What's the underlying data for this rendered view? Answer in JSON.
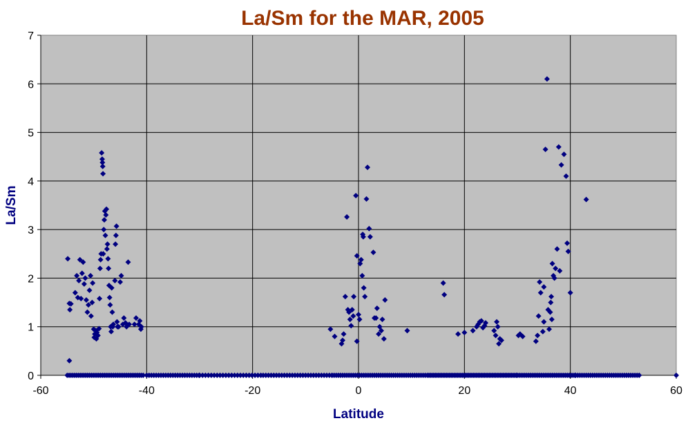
{
  "chart_data": {
    "type": "scatter",
    "title": "La/Sm for the MAR, 2005",
    "xlabel": "Latitude",
    "ylabel": "La/Sm",
    "xlim": [
      -60,
      60
    ],
    "ylim": [
      0,
      7
    ],
    "x_ticks": [
      "-60",
      "-40",
      "-20",
      "0",
      "20",
      "40",
      "60"
    ],
    "y_ticks": [
      "0",
      "1",
      "2",
      "3",
      "4",
      "5",
      "6",
      "7"
    ],
    "grid": true,
    "legend": "none",
    "colors": {
      "title": "#993300",
      "axis_label": "#000080",
      "marker": "#000080",
      "plot_bg": "#c0c0c0"
    },
    "points": [
      [
        -54.9,
        2.4
      ],
      [
        -54.6,
        1.48
      ],
      [
        -54.5,
        1.35
      ],
      [
        -54.3,
        1.47
      ],
      [
        -54.6,
        0.3
      ],
      [
        -53.5,
        1.7
      ],
      [
        -53.2,
        2.05
      ],
      [
        -53.0,
        1.6
      ],
      [
        -52.8,
        1.95
      ],
      [
        -52.6,
        2.38
      ],
      [
        -52.4,
        1.58
      ],
      [
        -52.2,
        2.1
      ],
      [
        -52.0,
        2.33
      ],
      [
        -51.8,
        1.88
      ],
      [
        -51.6,
        2.0
      ],
      [
        -51.4,
        1.55
      ],
      [
        -51.2,
        1.3
      ],
      [
        -51.0,
        1.45
      ],
      [
        -50.8,
        1.75
      ],
      [
        -50.6,
        2.05
      ],
      [
        -50.5,
        1.22
      ],
      [
        -50.3,
        1.5
      ],
      [
        -50.2,
        1.9
      ],
      [
        -50.0,
        0.95
      ],
      [
        -49.9,
        0.78
      ],
      [
        -49.8,
        0.85
      ],
      [
        -49.6,
        0.92
      ],
      [
        -49.5,
        0.75
      ],
      [
        -49.4,
        0.88
      ],
      [
        -49.2,
        0.82
      ],
      [
        -49.0,
        0.96
      ],
      [
        -48.9,
        1.58
      ],
      [
        -48.8,
        2.2
      ],
      [
        -48.7,
        2.38
      ],
      [
        -48.6,
        2.5
      ],
      [
        -48.5,
        4.58
      ],
      [
        -48.4,
        4.45
      ],
      [
        -48.35,
        4.38
      ],
      [
        -48.3,
        4.3
      ],
      [
        -48.25,
        4.15
      ],
      [
        -48.2,
        2.5
      ],
      [
        -48.1,
        3.0
      ],
      [
        -48.0,
        3.2
      ],
      [
        -47.9,
        3.38
      ],
      [
        -47.8,
        2.88
      ],
      [
        -47.7,
        3.3
      ],
      [
        -47.6,
        3.42
      ],
      [
        -47.5,
        2.6
      ],
      [
        -47.4,
        2.7
      ],
      [
        -47.3,
        2.4
      ],
      [
        -47.2,
        2.2
      ],
      [
        -47.1,
        1.85
      ],
      [
        -47.0,
        1.6
      ],
      [
        -46.9,
        1.45
      ],
      [
        -46.8,
        1.0
      ],
      [
        -46.7,
        0.9
      ],
      [
        -46.6,
        1.8
      ],
      [
        -46.5,
        1.3
      ],
      [
        -46.4,
        1.0
      ],
      [
        -46.3,
        1.05
      ],
      [
        -46.0,
        1.95
      ],
      [
        -45.9,
        2.7
      ],
      [
        -45.8,
        2.88
      ],
      [
        -45.7,
        3.07
      ],
      [
        -45.6,
        1.1
      ],
      [
        -45.5,
        1.0
      ],
      [
        -45.3,
        1.0
      ],
      [
        -45.0,
        1.92
      ],
      [
        -44.8,
        2.05
      ],
      [
        -44.5,
        1.05
      ],
      [
        -44.3,
        1.18
      ],
      [
        -44.0,
        1.08
      ],
      [
        -43.8,
        1.0
      ],
      [
        -43.5,
        2.33
      ],
      [
        -43.3,
        1.05
      ],
      [
        -42.3,
        1.05
      ],
      [
        -42.0,
        1.18
      ],
      [
        -41.5,
        1.05
      ],
      [
        -41.3,
        1.12
      ],
      [
        -41.1,
        0.95
      ],
      [
        -41.0,
        1.0
      ],
      [
        -5.3,
        0.95
      ],
      [
        -4.5,
        0.8
      ],
      [
        -3.2,
        0.65
      ],
      [
        -3.0,
        0.72
      ],
      [
        -2.8,
        0.85
      ],
      [
        -2.5,
        1.62
      ],
      [
        -2.2,
        3.26
      ],
      [
        -2.0,
        1.35
      ],
      [
        -1.8,
        1.3
      ],
      [
        -1.6,
        1.15
      ],
      [
        -1.4,
        1.02
      ],
      [
        -1.2,
        1.35
      ],
      [
        -1.0,
        1.22
      ],
      [
        -0.9,
        1.62
      ],
      [
        -0.5,
        3.7
      ],
      [
        -0.3,
        2.46
      ],
      [
        0.0,
        1.25
      ],
      [
        0.2,
        1.15
      ],
      [
        0.3,
        2.3
      ],
      [
        0.5,
        2.38
      ],
      [
        0.7,
        2.05
      ],
      [
        0.8,
        2.9
      ],
      [
        0.9,
        2.85
      ],
      [
        1.0,
        1.8
      ],
      [
        1.2,
        1.62
      ],
      [
        1.5,
        3.63
      ],
      [
        1.7,
        4.28
      ],
      [
        2.0,
        3.02
      ],
      [
        2.2,
        2.85
      ],
      [
        2.8,
        2.53
      ],
      [
        3.0,
        1.18
      ],
      [
        3.3,
        1.18
      ],
      [
        3.5,
        1.38
      ],
      [
        3.8,
        0.85
      ],
      [
        4.0,
        1.0
      ],
      [
        4.3,
        0.92
      ],
      [
        4.5,
        1.15
      ],
      [
        4.8,
        0.75
      ],
      [
        5.0,
        1.55
      ],
      [
        -0.3,
        0.7
      ],
      [
        9.2,
        0.92
      ],
      [
        16.0,
        1.9
      ],
      [
        16.2,
        1.66
      ],
      [
        18.8,
        0.85
      ],
      [
        20.0,
        0.88
      ],
      [
        21.6,
        0.92
      ],
      [
        22.3,
        1.0
      ],
      [
        22.6,
        1.05
      ],
      [
        22.9,
        1.1
      ],
      [
        23.2,
        1.12
      ],
      [
        23.5,
        0.98
      ],
      [
        23.8,
        1.02
      ],
      [
        24.0,
        1.08
      ],
      [
        25.6,
        0.92
      ],
      [
        25.9,
        0.82
      ],
      [
        26.1,
        1.1
      ],
      [
        26.3,
        1.0
      ],
      [
        26.5,
        0.65
      ],
      [
        26.7,
        0.75
      ],
      [
        27.0,
        0.72
      ],
      [
        30.2,
        0.82
      ],
      [
        30.5,
        0.85
      ],
      [
        31.0,
        0.8
      ],
      [
        33.5,
        0.7
      ],
      [
        33.8,
        0.82
      ],
      [
        34.0,
        1.22
      ],
      [
        34.2,
        1.92
      ],
      [
        34.4,
        1.7
      ],
      [
        34.8,
        0.9
      ],
      [
        35.0,
        1.1
      ],
      [
        35.3,
        4.65
      ],
      [
        35.6,
        6.1
      ],
      [
        35.0,
        1.82
      ],
      [
        35.8,
        1.35
      ],
      [
        36.0,
        0.95
      ],
      [
        36.2,
        1.3
      ],
      [
        36.4,
        1.62
      ],
      [
        36.6,
        2.3
      ],
      [
        36.8,
        2.05
      ],
      [
        37.0,
        2.0
      ],
      [
        37.2,
        2.2
      ],
      [
        37.5,
        2.6
      ],
      [
        37.8,
        4.7
      ],
      [
        38.0,
        2.15
      ],
      [
        38.3,
        4.33
      ],
      [
        38.8,
        4.55
      ],
      [
        39.2,
        4.1
      ],
      [
        39.4,
        2.72
      ],
      [
        39.6,
        2.55
      ],
      [
        40.0,
        1.7
      ],
      [
        36.5,
        1.15
      ],
      [
        36.3,
        1.5
      ],
      [
        43.0,
        3.62
      ],
      [
        60.0,
        0.0
      ]
    ]
  }
}
